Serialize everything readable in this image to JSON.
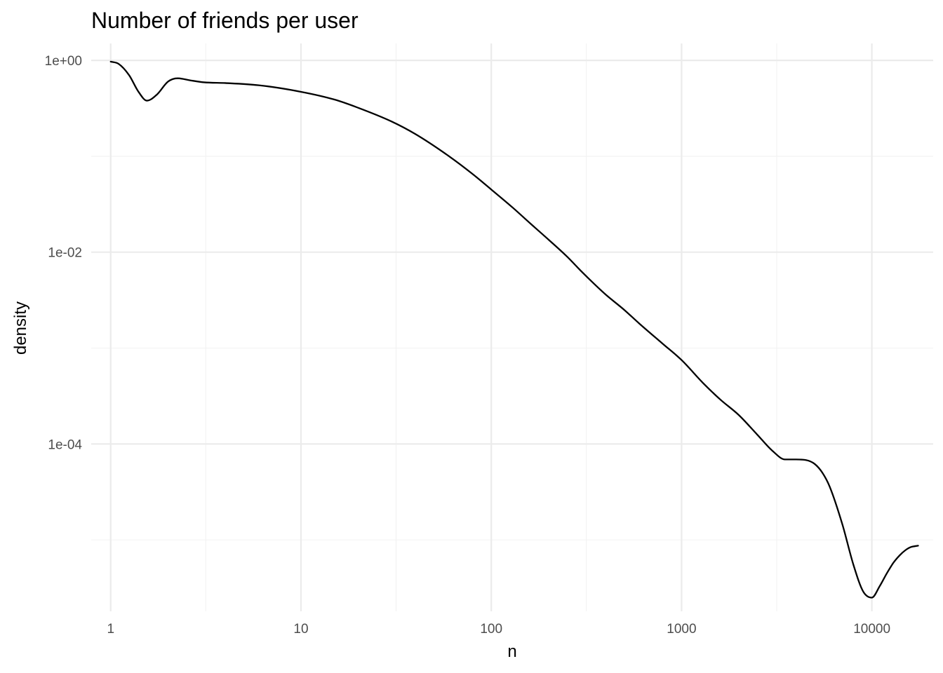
{
  "chart_data": {
    "type": "line",
    "title": "Number of friends per user",
    "xlabel": "n",
    "ylabel": "density",
    "x_scale": "log10",
    "y_scale": "log10",
    "xlim": [
      0.79,
      21000
    ],
    "ylim": [
      1.8e-06,
      1.5
    ],
    "x_ticks": [
      {
        "value": 1,
        "label": "1"
      },
      {
        "value": 10,
        "label": "10"
      },
      {
        "value": 100,
        "label": "100"
      },
      {
        "value": 1000,
        "label": "1000"
      },
      {
        "value": 10000,
        "label": "10000"
      }
    ],
    "x_minor_ticks": [
      3.16,
      31.6,
      316,
      3162
    ],
    "y_ticks": [
      {
        "value": 1,
        "label": "1e+00"
      },
      {
        "value": 0.01,
        "label": "1e-02"
      },
      {
        "value": 0.0001,
        "label": "1e-04"
      }
    ],
    "y_minor_ticks": [
      0.1,
      0.001,
      1e-05
    ],
    "grid": true,
    "legend": "none",
    "line_color": "#000000",
    "series": [
      {
        "x": [
          1,
          1.1,
          1.25,
          1.4,
          1.55,
          1.75,
          2,
          2.25,
          2.6,
          3.1,
          4,
          6,
          10,
          15,
          20,
          30,
          40,
          60,
          80,
          100,
          130,
          160,
          200,
          250,
          300,
          350,
          400,
          500,
          600,
          800,
          1000,
          1300,
          1600,
          2000,
          2500,
          3000,
          3500,
          4000,
          4500,
          5000,
          5500,
          6000,
          7000,
          8000,
          9000,
          10000,
          11000,
          12000,
          13000,
          14000,
          15000,
          16000,
          17500
        ],
        "y": [
          0.97,
          0.92,
          0.7,
          0.47,
          0.38,
          0.44,
          0.6,
          0.65,
          0.62,
          0.59,
          0.58,
          0.55,
          0.47,
          0.39,
          0.32,
          0.23,
          0.17,
          0.1,
          0.065,
          0.045,
          0.029,
          0.02,
          0.0135,
          0.009,
          0.0062,
          0.0046,
          0.0036,
          0.0025,
          0.0018,
          0.0011,
          0.00075,
          0.00043,
          0.00029,
          0.0002,
          0.000125,
          8.5e-05,
          6.9e-05,
          6.9e-05,
          6.8e-05,
          6.2e-05,
          5e-05,
          3.6e-05,
          1.45e-05,
          5.5e-06,
          2.9e-06,
          2.5e-06,
          3.3e-06,
          4.5e-06,
          5.8e-06,
          6.9e-06,
          7.8e-06,
          8.4e-06,
          8.7e-06
        ]
      }
    ]
  }
}
